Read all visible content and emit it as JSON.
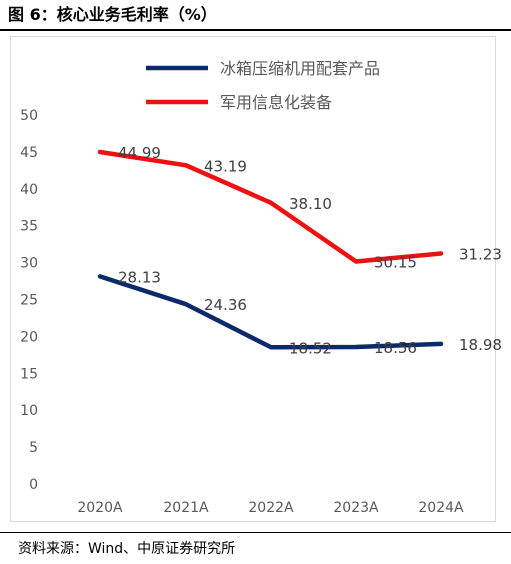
{
  "figure": {
    "title": "图 6：核心业务毛利率（%）",
    "source": "资料来源：Wind、中原证券研究所"
  },
  "chart_data": {
    "type": "line",
    "title": "",
    "xlabel": "",
    "ylabel": "",
    "categories": [
      "2020A",
      "2021A",
      "2022A",
      "2023A",
      "2024A"
    ],
    "ylim": [
      0,
      50
    ],
    "yticks": [
      0,
      5,
      10,
      15,
      20,
      25,
      30,
      35,
      40,
      45,
      50
    ],
    "grid": false,
    "legend_position": "top",
    "series": [
      {
        "name": "冰箱压缩机用配套产品",
        "color": "#0b2a6b",
        "values": [
          28.13,
          24.36,
          18.52,
          18.56,
          18.98
        ],
        "labels": [
          "28.13",
          "24.36",
          "18.52",
          "18.56",
          "18.98"
        ]
      },
      {
        "name": "军用信息化装备",
        "color": "#ee1111",
        "values": [
          44.99,
          43.19,
          38.1,
          30.15,
          31.23
        ],
        "labels": [
          "44.99",
          "43.19",
          "38.10",
          "30.15",
          "31.23"
        ]
      }
    ]
  }
}
